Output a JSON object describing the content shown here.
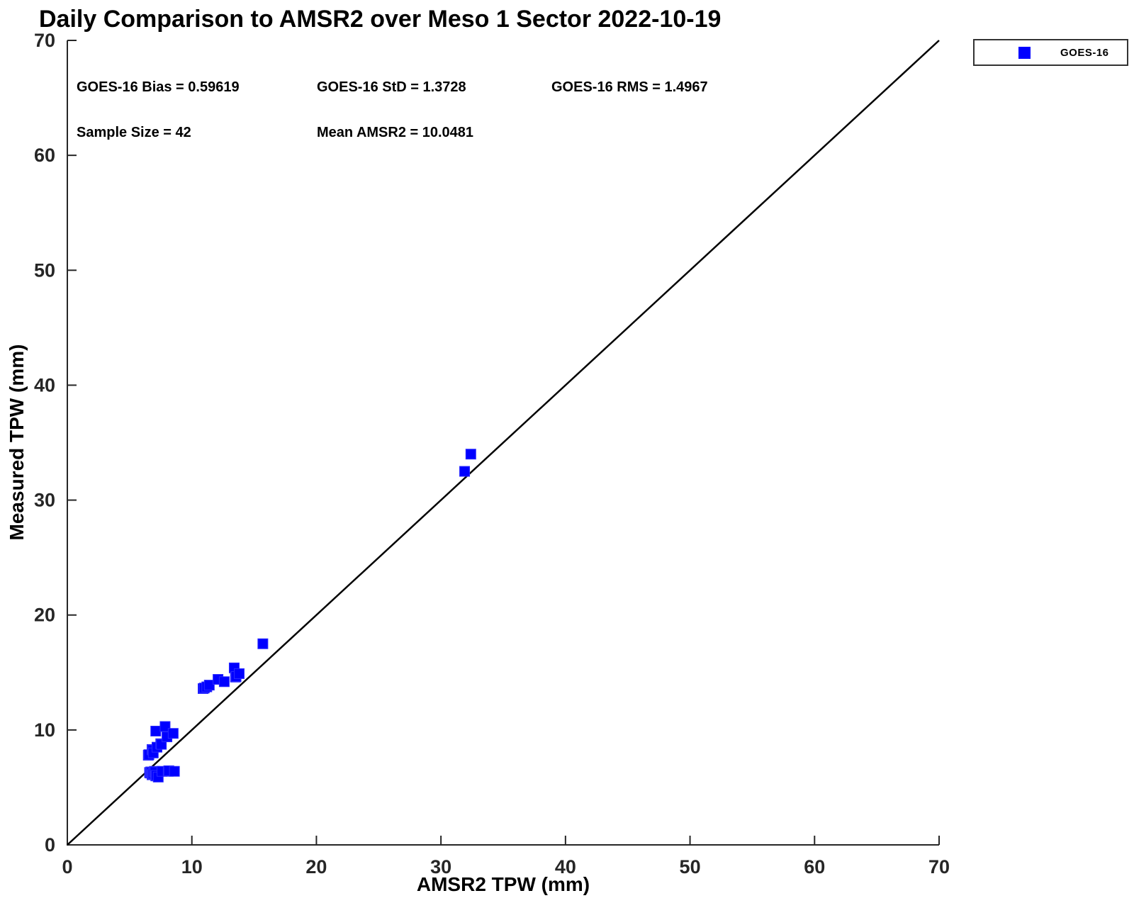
{
  "title": "Daily Comparison to AMSR2 over Meso 1 Sector 2022-10-19",
  "stats": {
    "bias": "GOES-16 Bias = 0.59619",
    "std": "GOES-16 StD = 1.3728",
    "rms": "GOES-16 RMS = 1.4967",
    "sample_size": "Sample Size = 42",
    "mean_amsr2": "Mean AMSR2 = 10.0481"
  },
  "legend": {
    "entries": [
      {
        "label": "GOES-16",
        "marker": "square",
        "color": "#0000ff"
      }
    ],
    "position": "top-right-outside"
  },
  "colors": {
    "marker": "#0000ff",
    "marker_edge": "#2b2bff",
    "axis": "#262626",
    "tick_label": "#262626",
    "reference_line": "#000000",
    "background": "#ffffff"
  },
  "chart_data": {
    "type": "scatter",
    "title": "Daily Comparison to AMSR2 over Meso 1 Sector 2022-10-19",
    "xlabel": "AMSR2 TPW (mm)",
    "ylabel": "Measured TPW (mm)",
    "xlim": [
      0,
      70
    ],
    "ylim": [
      0,
      70
    ],
    "xticks": [
      0,
      10,
      20,
      30,
      40,
      50,
      60,
      70
    ],
    "yticks": [
      0,
      10,
      20,
      30,
      40,
      50,
      60,
      70
    ],
    "grid": false,
    "box": false,
    "legend_position": "top-right-outside",
    "reference_line": {
      "type": "identity",
      "from": [
        0,
        0
      ],
      "to": [
        70,
        70
      ]
    },
    "annotations": [
      "GOES-16 Bias = 0.59619",
      "GOES-16 StD = 1.3728",
      "GOES-16 RMS = 1.4967",
      "Sample Size = 42",
      "Mean AMSR2 = 10.0481"
    ],
    "series": [
      {
        "name": "GOES-16",
        "marker": "square",
        "color": "#0000ff",
        "points": [
          [
            6.6,
            6.3
          ],
          [
            6.65,
            6.25
          ],
          [
            6.7,
            6.35
          ],
          [
            6.75,
            6.3
          ],
          [
            6.8,
            6.1
          ],
          [
            6.85,
            6.15
          ],
          [
            6.9,
            6.2
          ],
          [
            7.0,
            6.4
          ],
          [
            7.0,
            6.3
          ],
          [
            7.05,
            6.35
          ],
          [
            7.1,
            6.0
          ],
          [
            7.15,
            6.05
          ],
          [
            7.3,
            5.9
          ],
          [
            7.6,
            6.4
          ],
          [
            8.1,
            6.4
          ],
          [
            8.15,
            6.45
          ],
          [
            8.6,
            6.4
          ],
          [
            6.5,
            7.8
          ],
          [
            6.55,
            7.85
          ],
          [
            6.8,
            8.3
          ],
          [
            6.85,
            8.25
          ],
          [
            6.9,
            8.0
          ],
          [
            7.2,
            8.5
          ],
          [
            7.5,
            8.8
          ],
          [
            7.55,
            8.75
          ],
          [
            7.1,
            9.9
          ],
          [
            7.85,
            10.3
          ],
          [
            8.0,
            9.4
          ],
          [
            8.5,
            9.7
          ],
          [
            10.9,
            13.6
          ],
          [
            11.0,
            13.65
          ],
          [
            11.2,
            13.75
          ],
          [
            11.4,
            13.9
          ],
          [
            12.1,
            14.4
          ],
          [
            12.6,
            14.2
          ],
          [
            13.4,
            15.4
          ],
          [
            13.5,
            14.6
          ],
          [
            13.55,
            14.65
          ],
          [
            13.8,
            14.9
          ],
          [
            15.7,
            17.5
          ],
          [
            31.9,
            32.5
          ],
          [
            32.4,
            34.0
          ]
        ]
      }
    ]
  }
}
